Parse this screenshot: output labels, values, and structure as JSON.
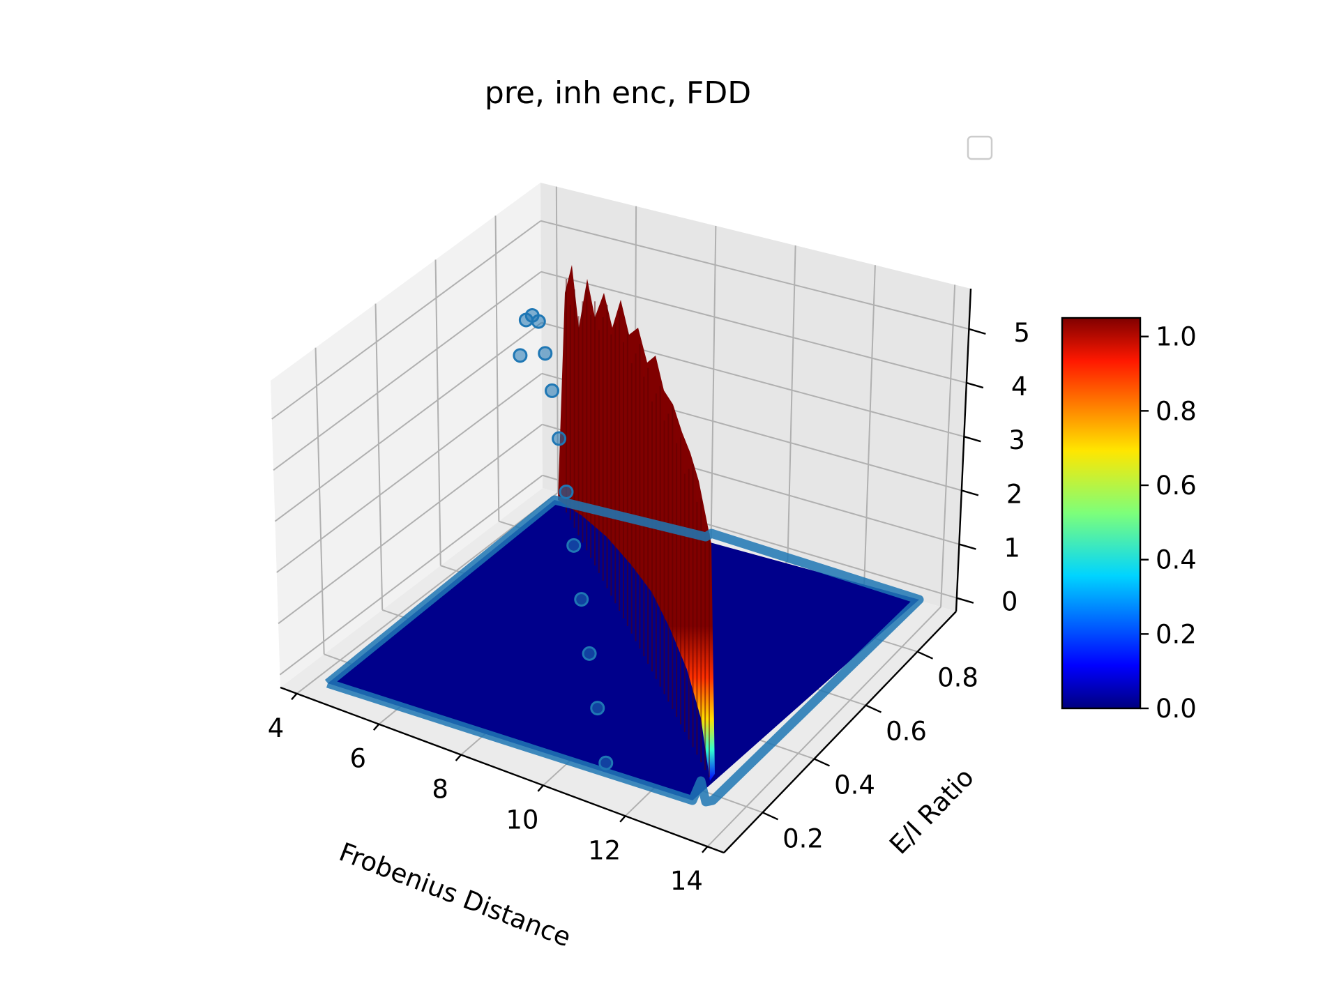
{
  "chart_data": {
    "type": "surface3d",
    "title": "pre, inh enc, FDD",
    "xlabel": "Frobenius Distance",
    "ylabel": "E/I Ratio",
    "zlabel": "",
    "x_ticks": [
      "4",
      "6",
      "8",
      "10",
      "12",
      "14"
    ],
    "y_ticks": [
      "0.2",
      "0.4",
      "0.6",
      "0.8"
    ],
    "z_ticks": [
      "0",
      "1",
      "2",
      "3",
      "4",
      "5"
    ],
    "xlim": [
      3.6,
      14.4
    ],
    "ylim": [
      0.05,
      0.95
    ],
    "zlim": [
      -0.25,
      5.75
    ],
    "grid": true,
    "legend": {
      "placement": "top-right",
      "entries": []
    },
    "colormap": "jet",
    "colorbar": {
      "ticks": [
        "0.0",
        "0.2",
        "0.4",
        "0.6",
        "0.8",
        "1.0"
      ],
      "range": [
        0,
        1.05
      ]
    },
    "surface_color": "#00008b",
    "scatter_color": "#1f77b4",
    "edge_points": [
      [
        4.0,
        0.82,
        3.0
      ],
      [
        4.6,
        0.76,
        4.1
      ],
      [
        5.2,
        0.7,
        4.6
      ],
      [
        5.8,
        0.64,
        4.9
      ],
      [
        6.4,
        0.58,
        4.7
      ],
      [
        7.0,
        0.52,
        4.4
      ],
      [
        7.6,
        0.46,
        3.9
      ],
      [
        8.2,
        0.4,
        3.3
      ],
      [
        8.8,
        0.34,
        2.7
      ],
      [
        9.4,
        0.28,
        2.1
      ],
      [
        10.0,
        0.22,
        1.5
      ],
      [
        10.6,
        0.16,
        0.9
      ],
      [
        11.2,
        0.1,
        0.3
      ]
    ]
  }
}
